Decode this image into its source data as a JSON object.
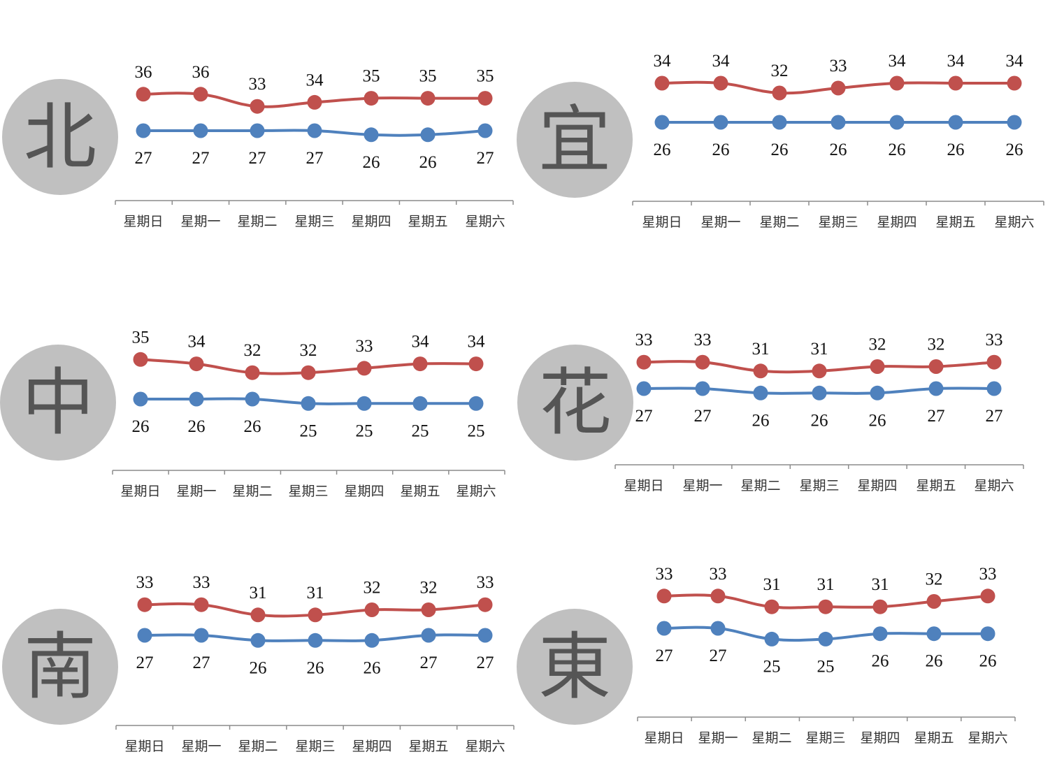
{
  "colors": {
    "high_series": "#c0504d",
    "low_series": "#4f81bd",
    "badge_fill": "#c0c0c0",
    "badge_text": "#555555",
    "axis": "#8c8c8c"
  },
  "chart_data": [
    {
      "type": "line",
      "city": "北",
      "categories": [
        "星期日",
        "星期一",
        "星期二",
        "星期三",
        "星期四",
        "星期五",
        "星期六"
      ],
      "series": [
        {
          "key": "high",
          "values": [
            36,
            36,
            33,
            34,
            35,
            35,
            35
          ]
        },
        {
          "key": "low",
          "values": [
            27,
            27,
            27,
            27,
            26,
            26,
            27
          ]
        }
      ],
      "data_labels": true,
      "grid": false,
      "legend": "none"
    },
    {
      "type": "line",
      "city": "宜",
      "categories": [
        "星期日",
        "星期一",
        "星期二",
        "星期三",
        "星期四",
        "星期五",
        "星期六"
      ],
      "series": [
        {
          "key": "high",
          "values": [
            34,
            34,
            32,
            33,
            34,
            34,
            34
          ]
        },
        {
          "key": "low",
          "values": [
            26,
            26,
            26,
            26,
            26,
            26,
            26
          ]
        }
      ],
      "data_labels": true,
      "grid": false,
      "legend": "none"
    },
    {
      "type": "line",
      "city": "中",
      "categories": [
        "星期日",
        "星期一",
        "星期二",
        "星期三",
        "星期四",
        "星期五",
        "星期六"
      ],
      "series": [
        {
          "key": "high",
          "values": [
            35,
            34,
            32,
            32,
            33,
            34,
            34
          ]
        },
        {
          "key": "low",
          "values": [
            26,
            26,
            26,
            25,
            25,
            25,
            25
          ]
        }
      ],
      "data_labels": true,
      "grid": false,
      "legend": "none"
    },
    {
      "type": "line",
      "city": "花",
      "categories": [
        "星期日",
        "星期一",
        "星期二",
        "星期三",
        "星期四",
        "星期五",
        "星期六"
      ],
      "series": [
        {
          "key": "high",
          "values": [
            33,
            33,
            31,
            31,
            32,
            32,
            33
          ]
        },
        {
          "key": "low",
          "values": [
            27,
            27,
            26,
            26,
            26,
            27,
            27
          ]
        }
      ],
      "data_labels": true,
      "grid": false,
      "legend": "none"
    },
    {
      "type": "line",
      "city": "南",
      "categories": [
        "星期日",
        "星期一",
        "星期二",
        "星期三",
        "星期四",
        "星期五",
        "星期六"
      ],
      "series": [
        {
          "key": "high",
          "values": [
            33,
            33,
            31,
            31,
            32,
            32,
            33
          ]
        },
        {
          "key": "low",
          "values": [
            27,
            27,
            26,
            26,
            26,
            27,
            27
          ]
        }
      ],
      "data_labels": true,
      "grid": false,
      "legend": "none"
    },
    {
      "type": "line",
      "city": "東",
      "categories": [
        "星期日",
        "星期一",
        "星期二",
        "星期三",
        "星期四",
        "星期五",
        "星期六"
      ],
      "series": [
        {
          "key": "high",
          "values": [
            33,
            33,
            31,
            31,
            31,
            32,
            33
          ]
        },
        {
          "key": "low",
          "values": [
            27,
            27,
            25,
            25,
            26,
            26,
            26
          ]
        }
      ],
      "data_labels": true,
      "grid": false,
      "legend": "none"
    }
  ]
}
